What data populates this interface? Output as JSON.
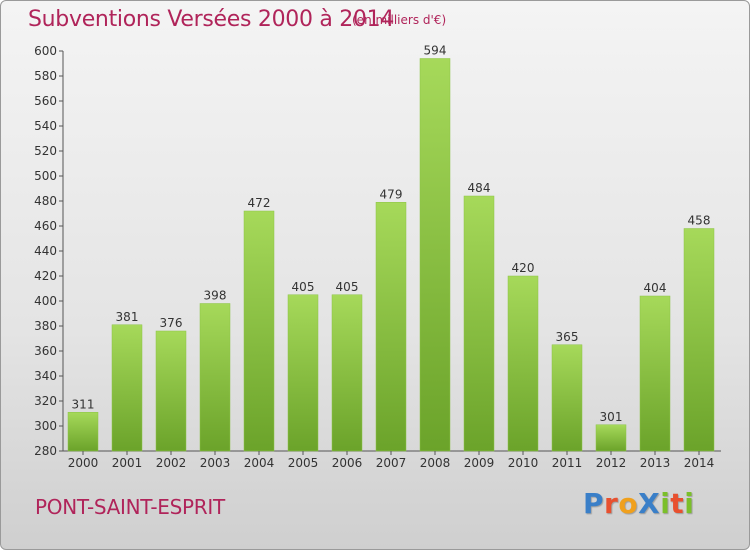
{
  "header": {
    "title": "Subventions Versées 2000 à 2014",
    "unit": "(en milliers d'€)"
  },
  "footer": {
    "commune": "PONT-SAINT-ESPRIT",
    "logo": "ProXiti"
  },
  "colors": {
    "title": "#b0245a",
    "bar_light": "#a6d95a",
    "bar_dark": "#6ba32a",
    "logo_letters": [
      "#3a7fc8",
      "#e8502f",
      "#f0a01c",
      "#3a7fc8",
      "#7bbf2a",
      "#e8502f",
      "#7bbf2a"
    ]
  },
  "chart_data": {
    "type": "bar",
    "title": "Subventions Versées 2000 à 2014",
    "subtitle": "(en milliers d'€)",
    "xlabel": "",
    "ylabel": "",
    "categories": [
      "2000",
      "2001",
      "2002",
      "2003",
      "2004",
      "2005",
      "2006",
      "2007",
      "2008",
      "2009",
      "2010",
      "2011",
      "2012",
      "2013",
      "2014"
    ],
    "values": [
      311,
      381,
      376,
      398,
      472,
      405,
      405,
      479,
      594,
      484,
      420,
      365,
      301,
      404,
      458
    ],
    "ylim": [
      280,
      600
    ],
    "yticks": [
      280,
      300,
      320,
      340,
      360,
      380,
      400,
      420,
      440,
      460,
      480,
      500,
      520,
      540,
      560,
      580,
      600
    ],
    "grid": false,
    "legend": "none"
  }
}
